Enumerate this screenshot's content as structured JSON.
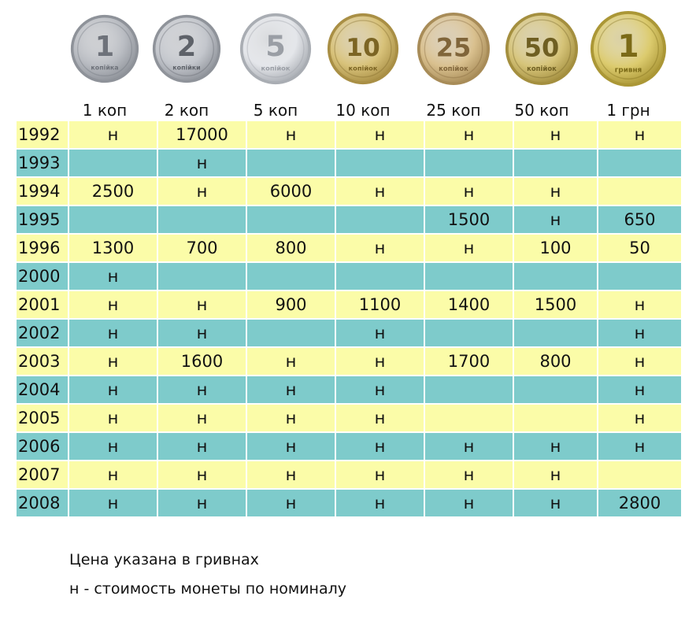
{
  "coins": [
    {
      "label": "1 коп",
      "face": "1",
      "legend": "копійка",
      "color": "#b9bcc2",
      "rim": "#8e9299",
      "ink": "#6e727a"
    },
    {
      "label": "2 коп",
      "face": "2",
      "legend": "копійки",
      "color": "#c3c6cc",
      "rim": "#8f939a",
      "ink": "#5e6269"
    },
    {
      "label": "5 коп",
      "face": "5",
      "legend": "копійок",
      "color": "#e4e6ea",
      "rim": "#a9adb3",
      "ink": "#9a9ea5"
    },
    {
      "label": "10 коп",
      "face": "10",
      "legend": "копійок",
      "color": "#d8c27a",
      "rim": "#a98f45",
      "ink": "#7c6524"
    },
    {
      "label": "25 коп",
      "face": "25",
      "legend": "копійок",
      "color": "#d9c08e",
      "rim": "#a88c58",
      "ink": "#80653a"
    },
    {
      "label": "50 коп",
      "face": "50",
      "legend": "копійок",
      "color": "#d6c479",
      "rim": "#a48f3f",
      "ink": "#6f5f22"
    },
    {
      "label": "1 грн",
      "face": "1",
      "legend": "гривня",
      "color": "#dccb6e",
      "rim": "#ab9736",
      "ink": "#7b6a17"
    }
  ],
  "rows": [
    {
      "year": "1992",
      "values": [
        "н",
        "17000",
        "н",
        "н",
        "н",
        "н",
        "н"
      ]
    },
    {
      "year": "1993",
      "values": [
        "",
        "н",
        "",
        "",
        "",
        "",
        ""
      ]
    },
    {
      "year": "1994",
      "values": [
        "2500",
        "н",
        "6000",
        "н",
        "н",
        "н",
        ""
      ]
    },
    {
      "year": "1995",
      "values": [
        "",
        "",
        "",
        "",
        "1500",
        "н",
        "650"
      ]
    },
    {
      "year": "1996",
      "values": [
        "1300",
        "700",
        "800",
        "н",
        "н",
        "100",
        "50"
      ]
    },
    {
      "year": "2000",
      "values": [
        "н",
        "",
        "",
        "",
        "",
        "",
        ""
      ]
    },
    {
      "year": "2001",
      "values": [
        "н",
        "н",
        "900",
        "1100",
        "1400",
        "1500",
        "н"
      ]
    },
    {
      "year": "2002",
      "values": [
        "н",
        "н",
        "",
        "н",
        "",
        "",
        "н"
      ]
    },
    {
      "year": "2003",
      "values": [
        "н",
        "1600",
        "н",
        "н",
        "1700",
        "800",
        "н"
      ]
    },
    {
      "year": "2004",
      "values": [
        "н",
        "н",
        "н",
        "н",
        "",
        "",
        "н"
      ]
    },
    {
      "year": "2005",
      "values": [
        "н",
        "н",
        "н",
        "н",
        "",
        "",
        "н"
      ]
    },
    {
      "year": "2006",
      "values": [
        "н",
        "н",
        "н",
        "н",
        "н",
        "н",
        "н"
      ]
    },
    {
      "year": "2007",
      "values": [
        "н",
        "н",
        "н",
        "н",
        "н",
        "н",
        ""
      ]
    },
    {
      "year": "2008",
      "values": [
        "н",
        "н",
        "н",
        "н",
        "н",
        "н",
        "2800"
      ]
    }
  ],
  "row_colors": {
    "odd": "#fbfca8",
    "even": "#7ecbcb"
  },
  "notes": {
    "price_note": "Цена указана в гривнах",
    "n_note": "н - стоимость монеты по номиналу"
  }
}
